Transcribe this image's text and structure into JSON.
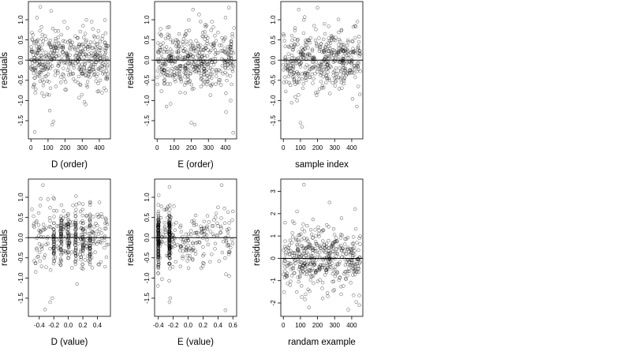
{
  "chart_data": [
    {
      "type": "scatter",
      "xlabel": "D (order)",
      "ylabel": "residuals",
      "xlim": [
        -15,
        465
      ],
      "ylim": [
        -1.95,
        1.45
      ],
      "xticks": [
        0,
        100,
        200,
        300,
        400
      ],
      "xtick_labels": [
        "0",
        "100",
        "200",
        "300",
        "400"
      ],
      "yticks": [
        -1.5,
        -1.0,
        -0.5,
        0.0,
        0.5,
        1.0
      ],
      "ytick_labels": [
        "-1.5",
        "-1.0",
        "-0.5",
        "0.0",
        "0.5",
        "1.0"
      ],
      "reference_line_y": 0,
      "grid": false,
      "series": [
        {
          "n": 450,
          "x_range": [
            0,
            450
          ],
          "marker": "open circle",
          "color": "#000000",
          "values": [
            [
              5,
              0.68
            ],
            [
              12,
              0.62
            ],
            [
              20,
              0.45
            ],
            [
              28,
              -0.72
            ],
            [
              35,
              1.05
            ],
            [
              42,
              -0.38
            ],
            [
              48,
              0.25
            ],
            [
              55,
              1.32
            ],
            [
              62,
              0.82
            ],
            [
              75,
              -0.55
            ],
            [
              82,
              -0.15
            ],
            [
              88,
              0.52
            ],
            [
              95,
              -0.85
            ],
            [
              100,
              -0.35
            ],
            [
              110,
              -1.25
            ],
            [
              118,
              1.22
            ],
            [
              125,
              -1.6
            ],
            [
              132,
              -1.52
            ],
            [
              140,
              0.35
            ],
            [
              150,
              0.1
            ],
            [
              160,
              0.72
            ],
            [
              175,
              -0.42
            ],
            [
              185,
              0.2
            ],
            [
              195,
              0.95
            ],
            [
              205,
              0.12
            ],
            [
              215,
              -0.25
            ],
            [
              225,
              0.48
            ],
            [
              240,
              -0.1
            ],
            [
              255,
              0.3
            ],
            [
              270,
              0.55
            ],
            [
              290,
              -0.62
            ],
            [
              305,
              0.85
            ],
            [
              320,
              -1.1
            ],
            [
              340,
              0.15
            ],
            [
              355,
              0.95
            ],
            [
              370,
              -0.28
            ],
            [
              390,
              0.4
            ],
            [
              405,
              -0.5
            ],
            [
              420,
              0.6
            ],
            [
              440,
              -0.75
            ],
            [
              22,
              -1.78
            ],
            [
              450,
              0.35
            ]
          ]
        }
      ]
    },
    {
      "type": "scatter",
      "xlabel": "E (order)",
      "ylabel": "residuals",
      "xlim": [
        -15,
        465
      ],
      "ylim": [
        -1.95,
        1.45
      ],
      "xticks": [
        0,
        100,
        200,
        300,
        400
      ],
      "xtick_labels": [
        "0",
        "100",
        "200",
        "300",
        "400"
      ],
      "yticks": [
        -1.5,
        -1.0,
        -0.5,
        0.0,
        0.5,
        1.0
      ],
      "ytick_labels": [
        "-1.5",
        "-1.0",
        "-0.5",
        "0.0",
        "0.5",
        "1.0"
      ],
      "reference_line_y": 0,
      "grid": false,
      "series": [
        {
          "n": 450,
          "x_range": [
            0,
            450
          ],
          "marker": "open circle",
          "color": "#000000",
          "values": [
            [
              10,
              0.2
            ],
            [
              25,
              0.6
            ],
            [
              40,
              -0.5
            ],
            [
              55,
              -1.15
            ],
            [
              70,
              0.82
            ],
            [
              85,
              0.15
            ],
            [
              100,
              -0.3
            ],
            [
              120,
              0.05
            ],
            [
              135,
              -0.8
            ],
            [
              150,
              0.45
            ],
            [
              165,
              -0.2
            ],
            [
              185,
              1.0
            ],
            [
              200,
              -1.55
            ],
            [
              210,
              1.25
            ],
            [
              220,
              -1.6
            ],
            [
              240,
              0.35
            ],
            [
              260,
              -0.45
            ],
            [
              280,
              0.7
            ],
            [
              300,
              -0.1
            ],
            [
              320,
              0.95
            ],
            [
              340,
              0.25
            ],
            [
              360,
              -0.55
            ],
            [
              380,
              0.55
            ],
            [
              400,
              1.05
            ],
            [
              420,
              1.3
            ],
            [
              430,
              -1.0
            ],
            [
              440,
              0.65
            ],
            [
              445,
              -1.8
            ]
          ]
        }
      ]
    },
    {
      "type": "scatter",
      "xlabel": "sample index",
      "ylabel": "residuals",
      "xlim": [
        -15,
        465
      ],
      "ylim": [
        -1.95,
        1.45
      ],
      "xticks": [
        0,
        100,
        200,
        300,
        400
      ],
      "xtick_labels": [
        "0",
        "100",
        "200",
        "300",
        "400"
      ],
      "yticks": [
        -1.5,
        -1.0,
        -0.5,
        0.0,
        0.5,
        1.0
      ],
      "ytick_labels": [
        "-1.5",
        "-1.0",
        "-0.5",
        "0.0",
        "0.5",
        "1.0"
      ],
      "reference_line_y": 0,
      "grid": false,
      "series": [
        {
          "n": 450,
          "x_range": [
            0,
            450
          ],
          "marker": "open circle",
          "color": "#000000",
          "values": [
            [
              10,
              0.05
            ],
            [
              30,
              0.15
            ],
            [
              50,
              -0.2
            ],
            [
              70,
              -0.6
            ],
            [
              80,
              -1.0
            ],
            [
              90,
              1.25
            ],
            [
              100,
              -1.55
            ],
            [
              110,
              -1.65
            ],
            [
              120,
              1.0
            ],
            [
              140,
              -0.35
            ],
            [
              160,
              0.55
            ],
            [
              180,
              0.85
            ],
            [
              200,
              1.3
            ],
            [
              220,
              0.4
            ],
            [
              240,
              0.9
            ],
            [
              260,
              -0.3
            ],
            [
              280,
              0.6
            ],
            [
              300,
              -0.45
            ],
            [
              320,
              0.2
            ],
            [
              340,
              0.75
            ],
            [
              360,
              -0.25
            ],
            [
              380,
              0.45
            ],
            [
              400,
              -0.1
            ],
            [
              420,
              0.85
            ],
            [
              430,
              -1.15
            ],
            [
              445,
              0.1
            ]
          ]
        }
      ]
    },
    {
      "type": "scatter",
      "xlabel": "D (value)",
      "ylabel": "residuals",
      "xlim": [
        -0.55,
        0.58
      ],
      "ylim": [
        -1.95,
        1.45
      ],
      "xticks": [
        -0.4,
        -0.2,
        0.0,
        0.2,
        0.4
      ],
      "xtick_labels": [
        "-0.4",
        "-0.2",
        "0.0",
        "0.2",
        "0.4"
      ],
      "yticks": [
        -1.5,
        -1.0,
        -0.5,
        0.0,
        0.5,
        1.0
      ],
      "ytick_labels": [
        "-1.5",
        "-1.0",
        "-0.5",
        "0.0",
        "0.5",
        "1.0"
      ],
      "reference_line_y": 0,
      "grid": false,
      "series": [
        {
          "n": 450,
          "x_range": [
            -0.5,
            0.55
          ],
          "marker": "open circle",
          "color": "#000000",
          "dense_x_columns": [
            -0.2,
            -0.1,
            0.0,
            0.1,
            0.2,
            0.3
          ],
          "values": [
            [
              -0.5,
              0.7
            ],
            [
              -0.45,
              -0.85
            ],
            [
              -0.35,
              1.3
            ],
            [
              -0.32,
              -1.78
            ],
            [
              -0.28,
              0.95
            ],
            [
              -0.25,
              -1.6
            ],
            [
              -0.22,
              -1.5
            ],
            [
              -0.2,
              0.2
            ],
            [
              -0.1,
              -0.3
            ],
            [
              0.0,
              0.35
            ],
            [
              0.05,
              -0.75
            ],
            [
              0.1,
              0.1
            ],
            [
              0.12,
              -1.15
            ],
            [
              0.15,
              0.85
            ],
            [
              0.2,
              -0.2
            ],
            [
              0.25,
              0.55
            ],
            [
              0.3,
              -0.4
            ],
            [
              0.4,
              0.3
            ],
            [
              0.45,
              -0.6
            ],
            [
              0.52,
              0.45
            ]
          ]
        }
      ]
    },
    {
      "type": "scatter",
      "xlabel": "E (value)",
      "ylabel": "residuals",
      "xlim": [
        -0.45,
        0.65
      ],
      "ylim": [
        -1.95,
        1.45
      ],
      "xticks": [
        -0.4,
        -0.2,
        0.0,
        0.2,
        0.4,
        0.6
      ],
      "xtick_labels": [
        "-0.4",
        "-0.2",
        "0.0",
        "0.2",
        "0.4",
        "0.6"
      ],
      "yticks": [
        -1.5,
        -1.0,
        -0.5,
        0.0,
        0.5,
        1.0
      ],
      "ytick_labels": [
        "-1.5",
        "-1.0",
        "-0.5",
        "0.0",
        "0.5",
        "1.0"
      ],
      "reference_line_y": 0,
      "grid": false,
      "series": [
        {
          "n": 450,
          "x_range": [
            -0.4,
            0.6
          ],
          "marker": "open circle",
          "color": "#000000",
          "dense_x_columns": [
            -0.4,
            -0.25
          ],
          "values": [
            [
              -0.4,
              0.25
            ],
            [
              -0.38,
              -0.5
            ],
            [
              -0.25,
              1.25
            ],
            [
              -0.25,
              -1.6
            ],
            [
              -0.24,
              -1.5
            ],
            [
              -0.1,
              0.3
            ],
            [
              0.0,
              -0.2
            ],
            [
              0.1,
              0.55
            ],
            [
              0.2,
              -0.45
            ],
            [
              0.3,
              0.15
            ],
            [
              0.4,
              0.75
            ],
            [
              0.45,
              1.3
            ],
            [
              0.5,
              -1.8
            ],
            [
              0.55,
              -0.95
            ],
            [
              0.6,
              0.65
            ]
          ]
        }
      ]
    },
    {
      "type": "scatter",
      "xlabel": "randam example",
      "ylabel": "residuals",
      "xlim": [
        -15,
        465
      ],
      "ylim": [
        -2.6,
        3.55
      ],
      "xticks": [
        0,
        100,
        200,
        300,
        400
      ],
      "xtick_labels": [
        "0",
        "100",
        "200",
        "300",
        "400"
      ],
      "yticks": [
        -2,
        -1,
        0,
        1,
        2,
        3
      ],
      "ytick_labels": [
        "-2",
        "-1",
        "0",
        "1",
        "2",
        "3"
      ],
      "reference_line_y": 0,
      "grid": false,
      "series": [
        {
          "n": 450,
          "x_range": [
            0,
            450
          ],
          "marker": "open circle",
          "color": "#000000",
          "values": [
            [
              10,
              1.6
            ],
            [
              40,
              -1.2
            ],
            [
              80,
              2.1
            ],
            [
              120,
              3.3
            ],
            [
              150,
              -2.2
            ],
            [
              190,
              1.0
            ],
            [
              230,
              -1.8
            ],
            [
              270,
              2.5
            ],
            [
              300,
              -0.5
            ],
            [
              340,
              1.8
            ],
            [
              380,
              -2.3
            ],
            [
              420,
              2.2
            ],
            [
              445,
              -2.1
            ]
          ]
        }
      ]
    }
  ]
}
